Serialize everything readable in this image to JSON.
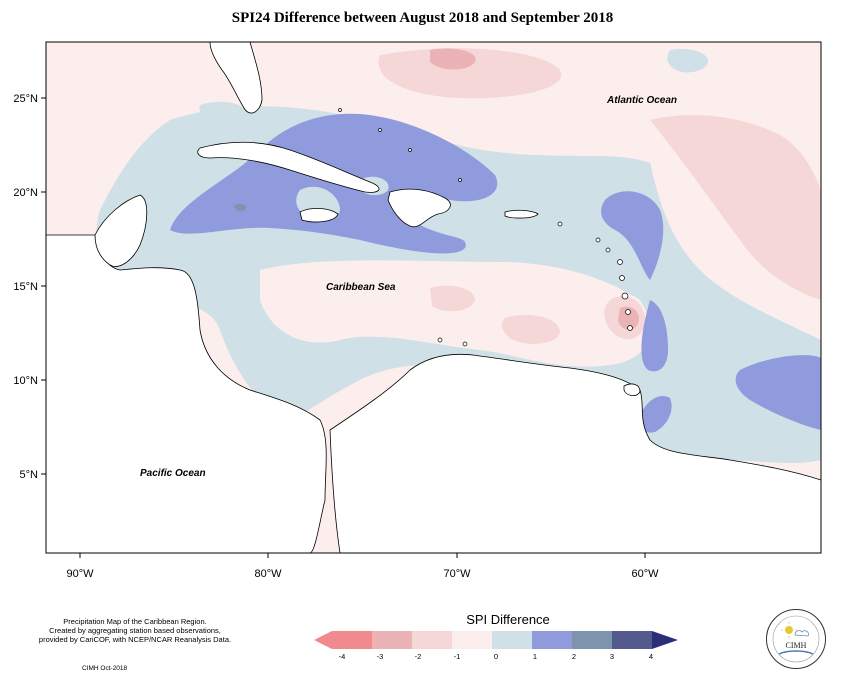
{
  "title": "SPI24 Difference between August 2018 and September 2018",
  "map": {
    "lon_range": [
      -92,
      -52
    ],
    "lat_range": [
      1.7,
      28
    ],
    "x_ticks": [
      "90°W",
      "80°W",
      "70°W",
      "60°W"
    ],
    "y_ticks": [
      "5°N",
      "10°N",
      "15°N",
      "20°N",
      "25°N"
    ],
    "labels": {
      "atlantic": "Atlantic Ocean",
      "caribbean": "Caribbean Sea",
      "pacific": "Pacific Ocean"
    },
    "colors": {
      "neg4": "#f08a8f",
      "neg3": "#ebb3b6",
      "neg2": "#f5d7d8",
      "neg1": "#fdeeee",
      "pos0": "#cfe0e6",
      "pos1": "#8f9bdc",
      "pos2": "#7c94ac",
      "pos3": "#545a8c",
      "pos4": "#2c2f78",
      "land": "#ffffff",
      "coast": "#000000"
    }
  },
  "legend": {
    "title": "SPI Difference",
    "ticks": [
      "-4",
      "-3",
      "-2",
      "-1",
      "0",
      "1",
      "2",
      "3",
      "4"
    ]
  },
  "footer": {
    "line1": "Precipitation Map of the Caribbean Region.",
    "line2": "Created by aggregating station based observations,",
    "line3": "provided by CariCOF, with NCEP/NCAR Reanalysis Data.",
    "credit": "CIMH Oct-2018"
  },
  "logo": {
    "text": "CIMH"
  }
}
